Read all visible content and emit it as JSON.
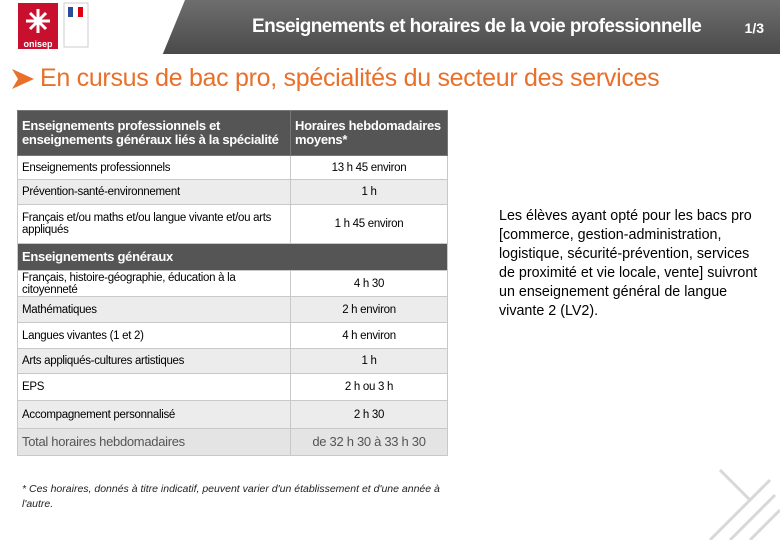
{
  "header": {
    "logo": "onisep",
    "title": "Enseignements et horaires de la voie professionnelle",
    "page": "1/3"
  },
  "subtitle": "En cursus de bac pro, spécialités du secteur des services",
  "table": {
    "columns": [
      "Enseignements professionnels et enseignements généraux liés à la spécialité",
      "Horaires hebdomadaires moyens*"
    ],
    "rows": [
      [
        "Enseignements professionnels",
        "13 h 45 environ"
      ],
      [
        "Prévention-santé-environnement",
        "1 h"
      ],
      [
        "Français et/ou maths et/ou langue vivante et/ou arts appliqués",
        "1 h 45 environ"
      ]
    ],
    "section": "Enseignements généraux",
    "section_rows": [
      [
        "Français, histoire-géographie, éducation à la citoyenneté",
        "4 h 30"
      ],
      [
        "Mathématiques",
        "2 h environ"
      ],
      [
        "Langues vivantes (1 et 2)",
        "4 h environ"
      ],
      [
        "Arts appliqués-cultures artistiques",
        "1 h"
      ],
      [
        "EPS",
        "2 h ou 3 h"
      ],
      [
        "Accompagnement personnalisé",
        "2 h 30"
      ]
    ],
    "total": [
      "Total horaires hebdomadaires",
      "de 32 h 30 à 33 h 30"
    ]
  },
  "note": "Les élèves ayant opté pour les bacs pro [commerce, gestion-administration, logistique, sécurité-prévention, services de proximité et vie locale, vente] suivront un enseignement général de langue vivante 2 (LV2).",
  "footnote": "* Ces horaires, donnés à titre indicatif, peuvent varier d'un établissement et d'une année à l'autre."
}
